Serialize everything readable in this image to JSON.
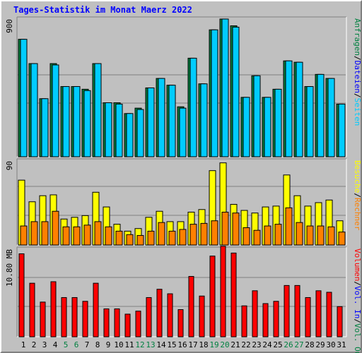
{
  "title": "Tages-Statistik im Monat Maerz 2022",
  "chart_data": [
    {
      "type": "bar",
      "panel": "top",
      "y_axis_label": "900",
      "ylim": [
        0,
        1025
      ],
      "categories": [
        "1",
        "2",
        "3",
        "4",
        "5",
        "6",
        "7",
        "8",
        "9",
        "10",
        "11",
        "12",
        "13",
        "14",
        "15",
        "16",
        "17",
        "18",
        "19",
        "20",
        "21",
        "22",
        "23",
        "24",
        "25",
        "26",
        "27",
        "28",
        "29",
        "30",
        "31"
      ],
      "series": [
        {
          "name": "Anfragen",
          "color": "#008040",
          "values": [
            870,
            690,
            430,
            690,
            520,
            520,
            500,
            690,
            400,
            400,
            320,
            360,
            510,
            580,
            530,
            370,
            730,
            540,
            940,
            1020,
            970,
            440,
            600,
            440,
            500,
            710,
            700,
            520,
            610,
            580,
            390
          ]
        },
        {
          "name": "Dateien",
          "color": "#00ccff",
          "values": [
            870,
            690,
            430,
            680,
            520,
            520,
            490,
            690,
            400,
            390,
            320,
            350,
            510,
            580,
            530,
            360,
            730,
            540,
            940,
            1020,
            960,
            440,
            600,
            440,
            500,
            710,
            700,
            520,
            610,
            580,
            390
          ]
        }
      ],
      "legend": [
        "Anfragen",
        "/",
        "Dateien",
        "/",
        "Seiten"
      ],
      "legend_colors": [
        "#008040",
        "#000000",
        "#0000ff",
        "#000000",
        "#00ccff"
      ]
    },
    {
      "type": "bar",
      "panel": "middle",
      "y_axis_label": "90",
      "ylim": [
        0,
        98
      ],
      "categories": [
        "1",
        "2",
        "3",
        "4",
        "5",
        "6",
        "7",
        "8",
        "9",
        "10",
        "11",
        "12",
        "13",
        "14",
        "15",
        "16",
        "17",
        "18",
        "19",
        "20",
        "21",
        "22",
        "23",
        "24",
        "25",
        "26",
        "27",
        "28",
        "29",
        "30",
        "31"
      ],
      "series": [
        {
          "name": "Besuche",
          "color": "#ffff00",
          "values": [
            75,
            50,
            57,
            58,
            30,
            32,
            34,
            61,
            44,
            24,
            16,
            19,
            32,
            39,
            27,
            27,
            38,
            41,
            86,
            95,
            47,
            40,
            37,
            44,
            45,
            81,
            57,
            45,
            49,
            52,
            28
          ]
        },
        {
          "name": "Rechner",
          "color": "#ff8000",
          "values": [
            22,
            27,
            27,
            39,
            21,
            21,
            23,
            27,
            21,
            16,
            12,
            11,
            16,
            26,
            16,
            18,
            24,
            25,
            28,
            38,
            37,
            20,
            17,
            22,
            24,
            43,
            26,
            22,
            22,
            21,
            15
          ]
        }
      ],
      "legend": [
        "Besuche",
        "/",
        "Rechner"
      ],
      "legend_colors": [
        "#ffff00",
        "#000000",
        "#ff8000"
      ]
    },
    {
      "type": "bar",
      "panel": "bottom",
      "y_axis_label": "10.80 MB",
      "ylim": [
        0,
        11.7
      ],
      "categories": [
        "1",
        "2",
        "3",
        "4",
        "5",
        "6",
        "7",
        "8",
        "9",
        "10",
        "11",
        "12",
        "13",
        "14",
        "15",
        "16",
        "17",
        "18",
        "19",
        "20",
        "21",
        "22",
        "23",
        "24",
        "25",
        "26",
        "27",
        "28",
        "29",
        "30",
        "31"
      ],
      "series": [
        {
          "name": "Volumen",
          "color": "#ff0000",
          "values": [
            11.0,
            7.1,
            4.6,
            7.3,
            5.2,
            5.2,
            4.7,
            7.1,
            3.7,
            3.7,
            3.0,
            3.4,
            5.2,
            6.3,
            5.7,
            3.6,
            8.0,
            5.4,
            10.7,
            12.0,
            11.1,
            4.1,
            6.1,
            4.4,
            4.7,
            6.8,
            6.8,
            5.2,
            6.1,
            5.9,
            4.0
          ]
        }
      ],
      "legend": [
        "Volumen",
        "/",
        "Vol. In",
        "/",
        "Vol. Out"
      ],
      "legend_colors": [
        "#ff0000",
        "#000000",
        "#0000ff",
        "#000000",
        "#008040"
      ]
    }
  ],
  "x_labels": [
    {
      "text": "1",
      "color": "#000000"
    },
    {
      "text": "2",
      "color": "#000000"
    },
    {
      "text": "3",
      "color": "#000000"
    },
    {
      "text": "4",
      "color": "#000000"
    },
    {
      "text": "5",
      "color": "#008040"
    },
    {
      "text": "6",
      "color": "#008040"
    },
    {
      "text": "7",
      "color": "#000000"
    },
    {
      "text": "8",
      "color": "#000000"
    },
    {
      "text": "9",
      "color": "#000000"
    },
    {
      "text": "10",
      "color": "#000000"
    },
    {
      "text": "11",
      "color": "#000000"
    },
    {
      "text": "12",
      "color": "#008040"
    },
    {
      "text": "13",
      "color": "#008040"
    },
    {
      "text": "14",
      "color": "#000000"
    },
    {
      "text": "15",
      "color": "#000000"
    },
    {
      "text": "16",
      "color": "#000000"
    },
    {
      "text": "17",
      "color": "#000000"
    },
    {
      "text": "18",
      "color": "#000000"
    },
    {
      "text": "19",
      "color": "#008040"
    },
    {
      "text": "20",
      "color": "#008040"
    },
    {
      "text": "21",
      "color": "#000000"
    },
    {
      "text": "22",
      "color": "#000000"
    },
    {
      "text": "23",
      "color": "#000000"
    },
    {
      "text": "24",
      "color": "#000000"
    },
    {
      "text": "25",
      "color": "#000000"
    },
    {
      "text": "26",
      "color": "#008040"
    },
    {
      "text": "27",
      "color": "#008040"
    },
    {
      "text": "28",
      "color": "#000000"
    },
    {
      "text": "29",
      "color": "#000000"
    },
    {
      "text": "30",
      "color": "#000000"
    },
    {
      "text": "31",
      "color": "#000000"
    }
  ]
}
